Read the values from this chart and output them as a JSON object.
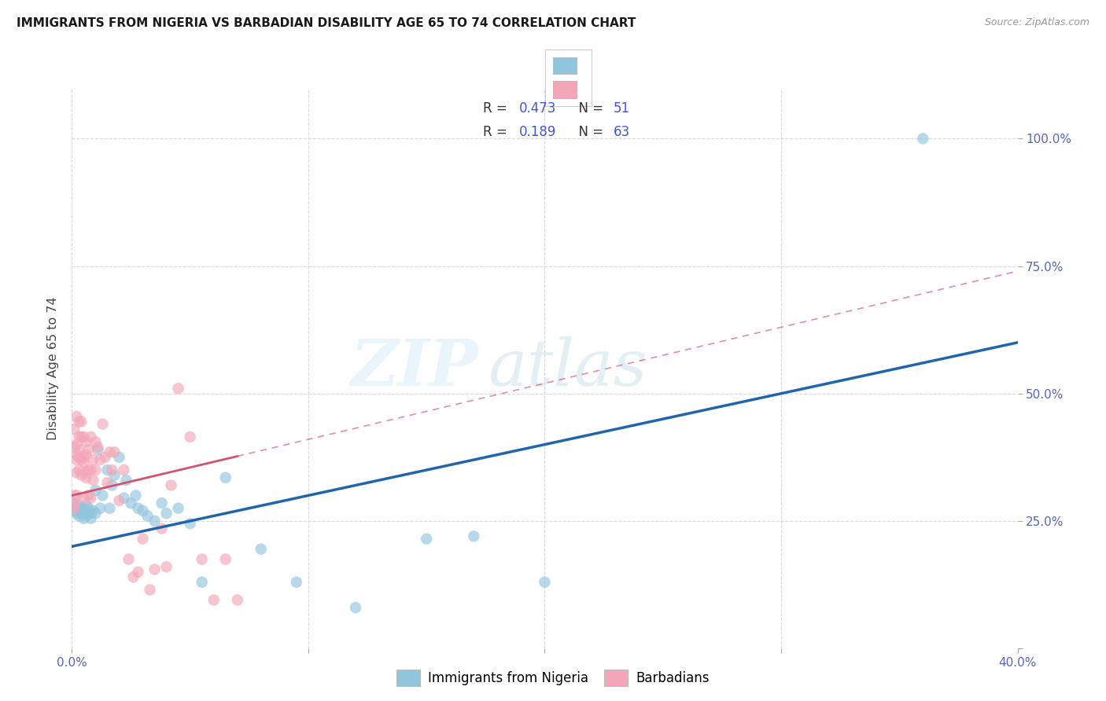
{
  "title": "IMMIGRANTS FROM NIGERIA VS BARBADIAN DISABILITY AGE 65 TO 74 CORRELATION CHART",
  "source": "Source: ZipAtlas.com",
  "ylabel": "Disability Age 65 to 74",
  "xlim": [
    0.0,
    0.4
  ],
  "ylim": [
    0.0,
    1.1
  ],
  "xticks": [
    0.0,
    0.1,
    0.2,
    0.3,
    0.4
  ],
  "xticklabels": [
    "0.0%",
    "",
    "",
    "",
    "40.0%"
  ],
  "yticks": [
    0.0,
    0.25,
    0.5,
    0.75,
    1.0
  ],
  "right_yticklabels": [
    "",
    "25.0%",
    "50.0%",
    "75.0%",
    "100.0%"
  ],
  "legend1_label": "Immigrants from Nigeria",
  "legend2_label": "Barbadians",
  "R_nigeria": 0.473,
  "N_nigeria": 51,
  "R_barbadian": 0.189,
  "N_barbadian": 63,
  "blue_color": "#92c5de",
  "pink_color": "#f4a6b8",
  "blue_line_color": "#2166ac",
  "pink_line_color": "#d6536d",
  "watermark_zip": "ZIP",
  "watermark_atlas": "atlas",
  "nigeria_x": [
    0.001,
    0.001,
    0.002,
    0.002,
    0.003,
    0.003,
    0.003,
    0.004,
    0.004,
    0.005,
    0.005,
    0.005,
    0.006,
    0.006,
    0.006,
    0.007,
    0.007,
    0.008,
    0.008,
    0.009,
    0.01,
    0.01,
    0.011,
    0.012,
    0.013,
    0.015,
    0.016,
    0.017,
    0.018,
    0.02,
    0.022,
    0.023,
    0.025,
    0.027,
    0.028,
    0.03,
    0.032,
    0.035,
    0.038,
    0.04,
    0.045,
    0.05,
    0.055,
    0.065,
    0.08,
    0.095,
    0.12,
    0.15,
    0.17,
    0.2,
    0.36
  ],
  "nigeria_y": [
    0.27,
    0.28,
    0.265,
    0.275,
    0.26,
    0.27,
    0.28,
    0.265,
    0.275,
    0.255,
    0.265,
    0.275,
    0.27,
    0.26,
    0.28,
    0.265,
    0.275,
    0.255,
    0.265,
    0.27,
    0.31,
    0.265,
    0.39,
    0.275,
    0.3,
    0.35,
    0.275,
    0.32,
    0.34,
    0.375,
    0.295,
    0.33,
    0.285,
    0.3,
    0.275,
    0.27,
    0.26,
    0.25,
    0.285,
    0.265,
    0.275,
    0.245,
    0.13,
    0.335,
    0.195,
    0.13,
    0.08,
    0.215,
    0.22,
    0.13,
    1.0
  ],
  "barbadian_x": [
    0.001,
    0.001,
    0.001,
    0.001,
    0.001,
    0.002,
    0.002,
    0.002,
    0.002,
    0.002,
    0.002,
    0.003,
    0.003,
    0.003,
    0.003,
    0.003,
    0.004,
    0.004,
    0.004,
    0.004,
    0.005,
    0.005,
    0.005,
    0.005,
    0.006,
    0.006,
    0.006,
    0.006,
    0.007,
    0.007,
    0.007,
    0.008,
    0.008,
    0.008,
    0.009,
    0.009,
    0.01,
    0.01,
    0.011,
    0.012,
    0.013,
    0.014,
    0.015,
    0.016,
    0.017,
    0.018,
    0.02,
    0.022,
    0.024,
    0.026,
    0.028,
    0.03,
    0.033,
    0.035,
    0.038,
    0.04,
    0.042,
    0.045,
    0.05,
    0.055,
    0.06,
    0.065,
    0.07
  ],
  "barbadian_y": [
    0.275,
    0.285,
    0.3,
    0.43,
    0.395,
    0.345,
    0.37,
    0.4,
    0.455,
    0.3,
    0.38,
    0.35,
    0.39,
    0.415,
    0.375,
    0.445,
    0.37,
    0.34,
    0.415,
    0.445,
    0.365,
    0.375,
    0.295,
    0.415,
    0.38,
    0.345,
    0.405,
    0.335,
    0.39,
    0.35,
    0.3,
    0.415,
    0.35,
    0.295,
    0.37,
    0.33,
    0.405,
    0.35,
    0.395,
    0.37,
    0.44,
    0.375,
    0.325,
    0.385,
    0.35,
    0.385,
    0.29,
    0.35,
    0.175,
    0.14,
    0.15,
    0.215,
    0.115,
    0.155,
    0.235,
    0.16,
    0.32,
    0.51,
    0.415,
    0.175,
    0.095,
    0.175,
    0.095
  ],
  "figsize": [
    14.06,
    8.92
  ],
  "dpi": 100
}
